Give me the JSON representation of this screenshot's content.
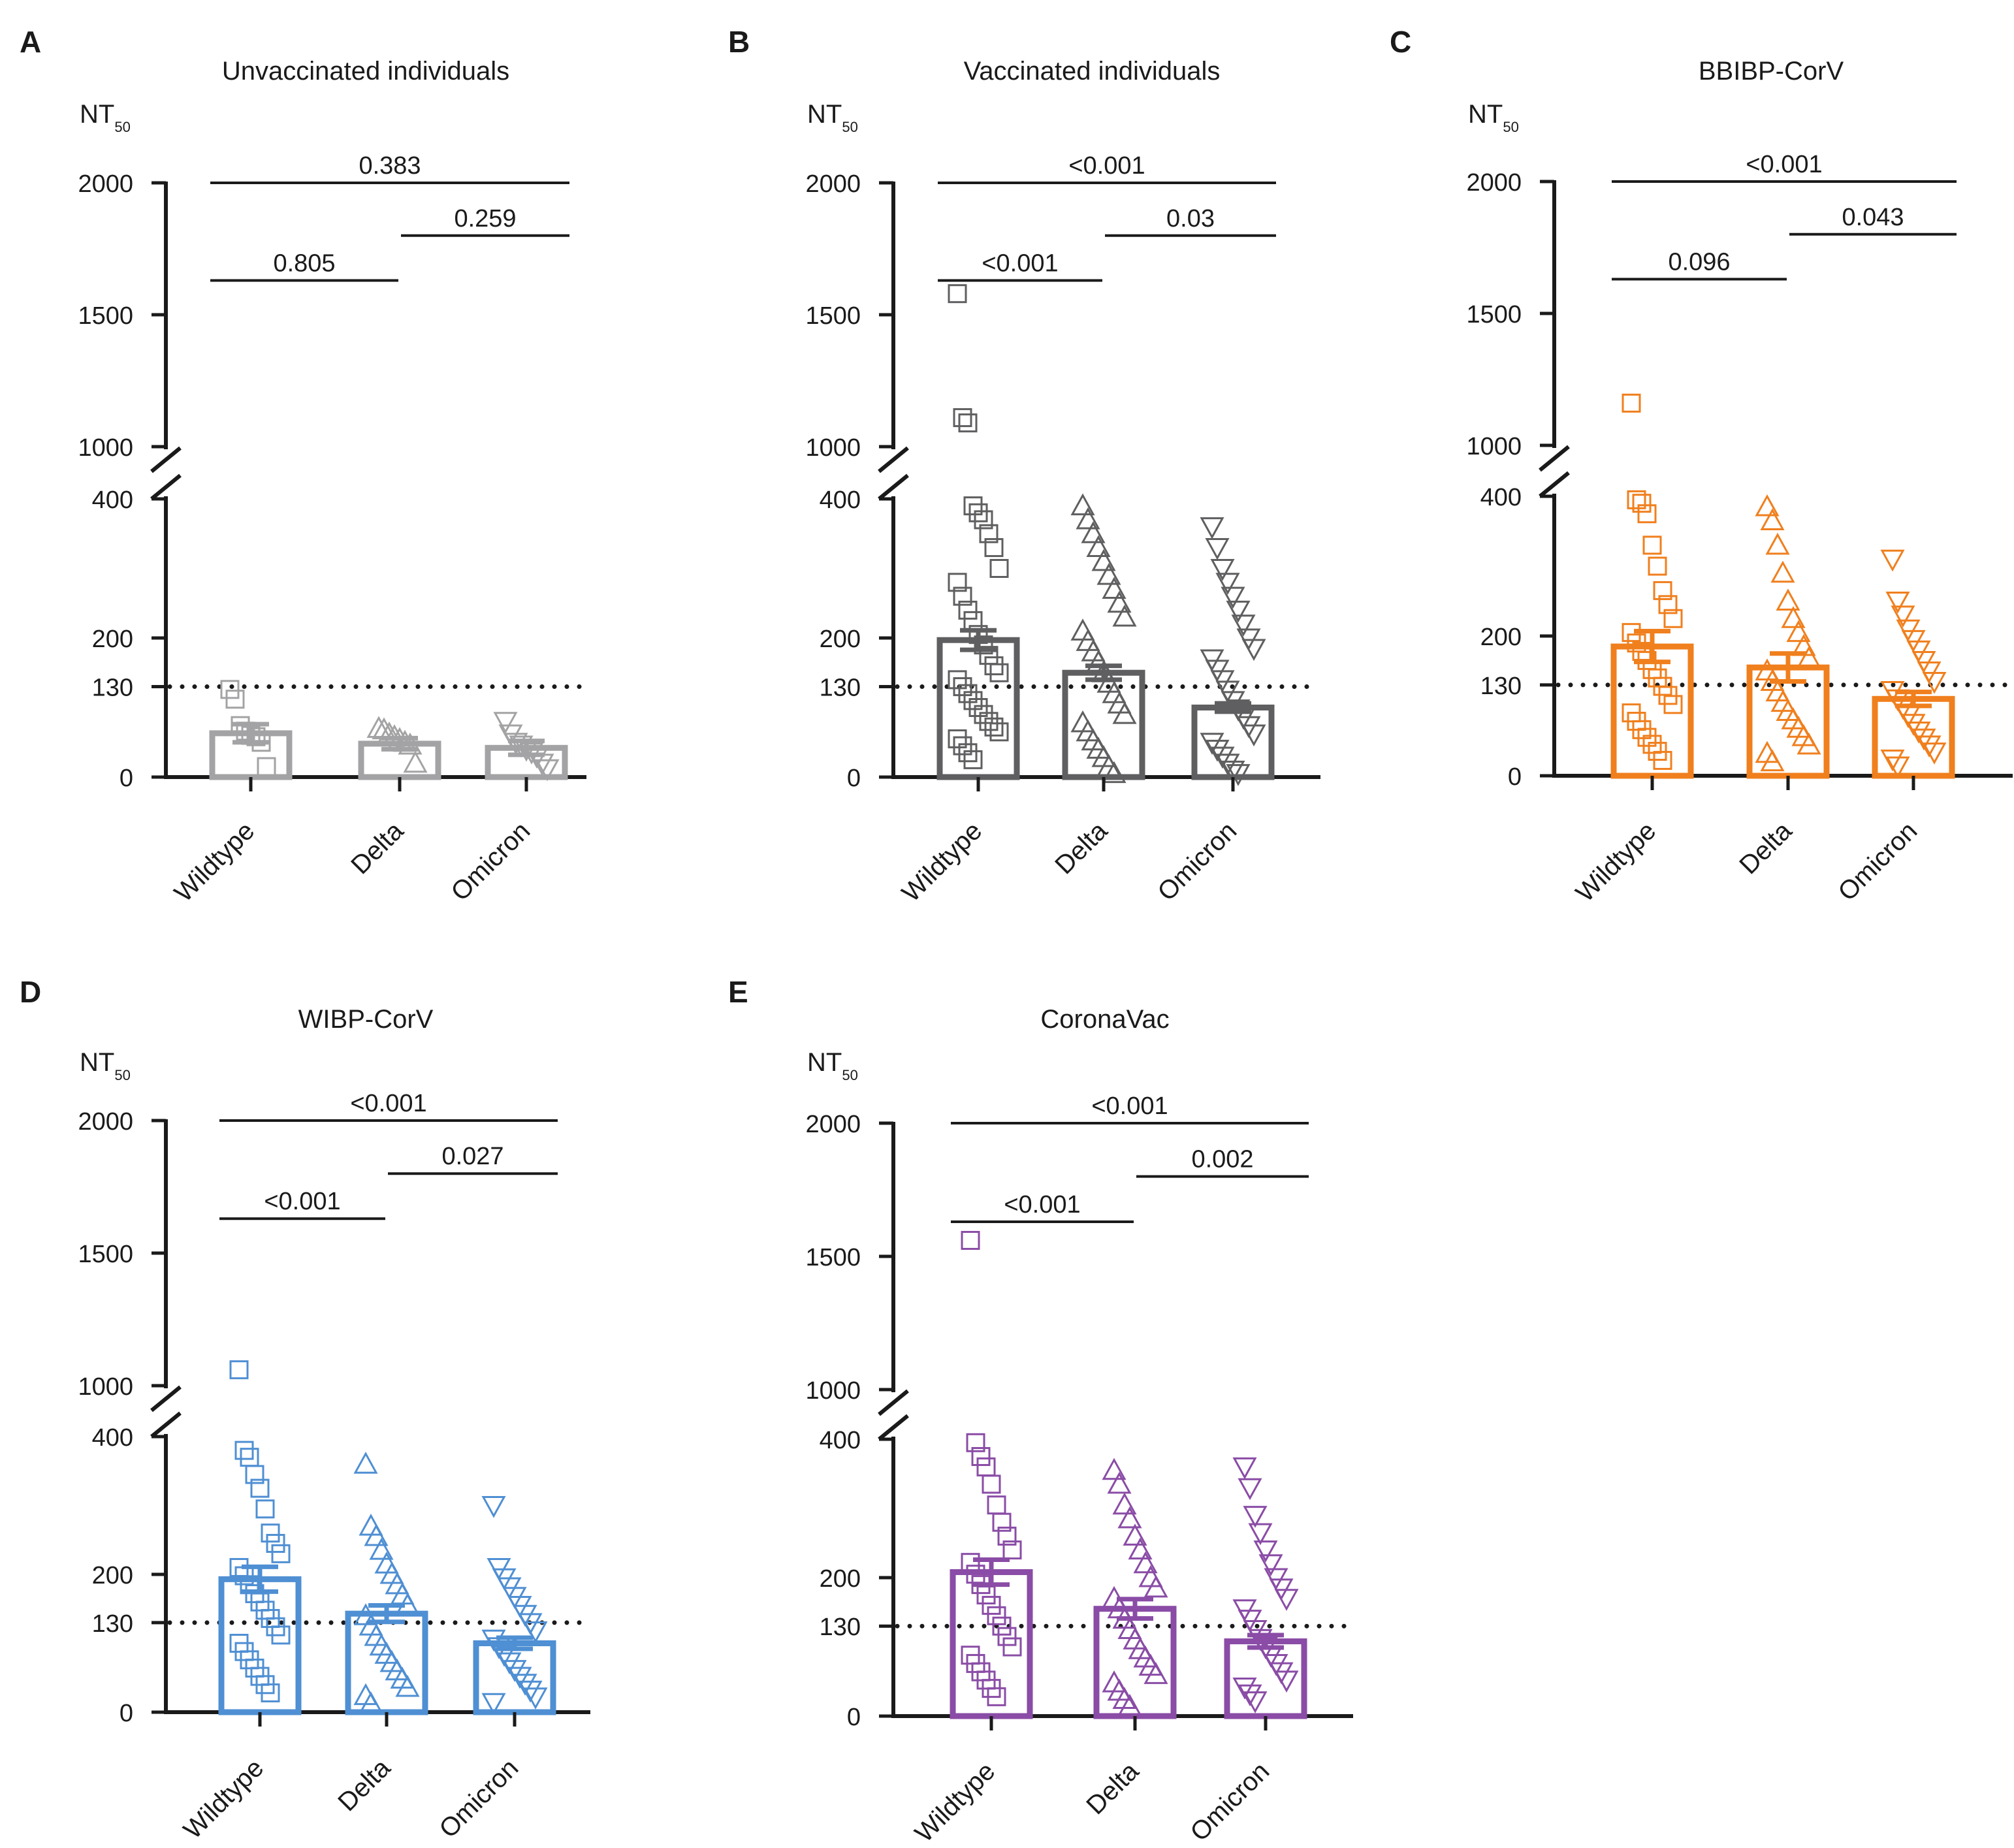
{
  "chart_data": [
    {
      "type": "bar",
      "panel": "A",
      "title": "Unvaccinated individuals",
      "ylabel": "NT",
      "ylabel_sub": "50",
      "color": "#a3a3a5",
      "categories": [
        "Wildtype",
        "Delta",
        "Omicron"
      ],
      "markers": [
        "square",
        "triangle-up",
        "triangle-down"
      ],
      "values": [
        63,
        48,
        42
      ],
      "sem": [
        13,
        8,
        10
      ],
      "points": [
        [
          126,
          112,
          74,
          66,
          60,
          58,
          50,
          15
        ],
        [
          70,
          68,
          62,
          58,
          54,
          50,
          46,
          20
        ],
        [
          80,
          62,
          50,
          46,
          40,
          36,
          30,
          20,
          12
        ]
      ],
      "threshold": 130,
      "yticks": [
        "0",
        "130",
        "200",
        "400",
        "1000",
        "1500",
        "2000"
      ],
      "axis_segments": {
        "lower": [
          0,
          400
        ],
        "upper": [
          1000,
          2000
        ]
      },
      "comparisons": [
        {
          "from": "Wildtype",
          "to": "Delta",
          "p": "0.805"
        },
        {
          "from": "Delta",
          "to": "Omicron",
          "p": "0.259"
        },
        {
          "from": "Wildtype",
          "to": "Omicron",
          "p": "0.383"
        }
      ]
    },
    {
      "type": "bar",
      "panel": "B",
      "title": "Vaccinated individuals",
      "ylabel": "NT",
      "ylabel_sub": "50",
      "color": "#5f5f61",
      "categories": [
        "Wildtype",
        "Delta",
        "Omicron"
      ],
      "markers": [
        "square",
        "triangle-up",
        "triangle-down"
      ],
      "values": [
        197,
        150,
        100
      ],
      "sem": [
        14,
        10,
        6
      ],
      "points": [
        [
          1580,
          1110,
          1090,
          390,
          380,
          370,
          350,
          330,
          300,
          280,
          260,
          240,
          225,
          205,
          190,
          175,
          160,
          150,
          140,
          130,
          120,
          110,
          100,
          90,
          80,
          72,
          65,
          55,
          45,
          35,
          25
        ],
        [
          390,
          370,
          350,
          330,
          310,
          290,
          270,
          250,
          230,
          210,
          195,
          180,
          165,
          150,
          135,
          120,
          105,
          90,
          78,
          65,
          52,
          40,
          28,
          15,
          5
        ],
        [
          360,
          330,
          300,
          280,
          260,
          240,
          220,
          200,
          185,
          170,
          155,
          140,
          125,
          110,
          98,
          86,
          74,
          62,
          50,
          40,
          30,
          20,
          10,
          5
        ]
      ],
      "threshold": 130,
      "yticks": [
        "0",
        "130",
        "200",
        "400",
        "1000",
        "1500",
        "2000"
      ],
      "axis_segments": {
        "lower": [
          0,
          400
        ],
        "upper": [
          1000,
          2000
        ]
      },
      "comparisons": [
        {
          "from": "Wildtype",
          "to": "Delta",
          "p": "<0.001"
        },
        {
          "from": "Delta",
          "to": "Omicron",
          "p": "0.03"
        },
        {
          "from": "Wildtype",
          "to": "Omicron",
          "p": "<0.001"
        }
      ]
    },
    {
      "type": "bar",
      "panel": "C",
      "title": "BBIBP-CorV",
      "ylabel": "NT",
      "ylabel_sub": "50",
      "color": "#f07f1d",
      "categories": [
        "Wildtype",
        "Delta",
        "Omicron"
      ],
      "markers": [
        "square",
        "triangle-up",
        "triangle-down"
      ],
      "values": [
        185,
        155,
        110
      ],
      "sem": [
        22,
        20,
        10
      ],
      "points": [
        [
          1160,
          395,
          390,
          375,
          330,
          300,
          265,
          245,
          225,
          205,
          190,
          178,
          165,
          152,
          140,
          128,
          115,
          102,
          90,
          78,
          66,
          55,
          45,
          35,
          22
        ],
        [
          385,
          365,
          330,
          290,
          250,
          225,
          205,
          185,
          168,
          150,
          135,
          120,
          105,
          92,
          80,
          68,
          56,
          44,
          32,
          20
        ],
        [
          310,
          250,
          230,
          210,
          195,
          180,
          165,
          150,
          135,
          122,
          110,
          98,
          86,
          75,
          64,
          54,
          44,
          34,
          24,
          14
        ]
      ],
      "threshold": 130,
      "yticks": [
        "0",
        "130",
        "200",
        "400",
        "1000",
        "1500",
        "2000"
      ],
      "axis_segments": {
        "lower": [
          0,
          400
        ],
        "upper": [
          1000,
          2000
        ]
      },
      "comparisons": [
        {
          "from": "Wildtype",
          "to": "Delta",
          "p": "0.096"
        },
        {
          "from": "Delta",
          "to": "Omicron",
          "p": "0.043"
        },
        {
          "from": "Wildtype",
          "to": "Omicron",
          "p": "<0.001"
        }
      ]
    },
    {
      "type": "bar",
      "panel": "D",
      "title": "WIBP-CorV",
      "ylabel": "NT",
      "ylabel_sub": "50",
      "color": "#4f8fd3",
      "categories": [
        "Wildtype",
        "Delta",
        "Omicron"
      ],
      "markers": [
        "square",
        "triangle-up",
        "triangle-down"
      ],
      "values": [
        193,
        143,
        100
      ],
      "sem": [
        18,
        12,
        8
      ],
      "points": [
        [
          1060,
          380,
          370,
          345,
          325,
          295,
          260,
          245,
          230,
          210,
          198,
          185,
          172,
          160,
          148,
          136,
          124,
          112,
          100,
          88,
          76,
          64,
          52,
          40,
          28
        ],
        [
          360,
          270,
          255,
          235,
          215,
          200,
          185,
          170,
          155,
          140,
          125,
          110,
          96,
          84,
          72,
          60,
          48,
          36,
          24,
          12
        ],
        [
          300,
          210,
          195,
          182,
          168,
          155,
          142,
          130,
          118,
          106,
          95,
          84,
          73,
          62,
          52,
          42,
          32,
          22,
          14
        ]
      ],
      "threshold": 130,
      "yticks": [
        "0",
        "130",
        "200",
        "400",
        "1000",
        "1500",
        "2000"
      ],
      "axis_segments": {
        "lower": [
          0,
          400
        ],
        "upper": [
          1000,
          2000
        ]
      },
      "comparisons": [
        {
          "from": "Wildtype",
          "to": "Delta",
          "p": "<0.001"
        },
        {
          "from": "Delta",
          "to": "Omicron",
          "p": "0.027"
        },
        {
          "from": "Wildtype",
          "to": "Omicron",
          "p": "<0.001"
        }
      ]
    },
    {
      "type": "bar",
      "panel": "E",
      "title": "CoronaVac",
      "ylabel": "NT",
      "ylabel_sub": "50",
      "color": "#8a4ca6",
      "categories": [
        "Wildtype",
        "Delta",
        "Omicron"
      ],
      "markers": [
        "square",
        "triangle-up",
        "triangle-down"
      ],
      "values": [
        208,
        155,
        108
      ],
      "sem": [
        18,
        14,
        9
      ],
      "points": [
        [
          1560,
          395,
          375,
          360,
          335,
          305,
          280,
          260,
          240,
          222,
          205,
          190,
          175,
          160,
          145,
          130,
          115,
          100,
          88,
          76,
          64,
          52,
          40,
          28
        ],
        [
          355,
          335,
          305,
          285,
          260,
          240,
          220,
          200,
          185,
          170,
          155,
          140,
          125,
          110,
          96,
          84,
          72,
          60,
          48,
          36,
          24,
          14
        ],
        [
          360,
          330,
          290,
          265,
          240,
          220,
          200,
          185,
          170,
          155,
          140,
          125,
          112,
          100,
          88,
          76,
          64,
          52,
          42,
          32,
          22
        ]
      ],
      "threshold": 130,
      "yticks": [
        "0",
        "130",
        "200",
        "400",
        "1000",
        "1500",
        "2000"
      ],
      "axis_segments": {
        "lower": [
          0,
          400
        ],
        "upper": [
          1000,
          2000
        ]
      },
      "comparisons": [
        {
          "from": "Wildtype",
          "to": "Delta",
          "p": "<0.001"
        },
        {
          "from": "Delta",
          "to": "Omicron",
          "p": "0.002"
        },
        {
          "from": "Wildtype",
          "to": "Omicron",
          "p": "<0.001"
        }
      ]
    }
  ]
}
